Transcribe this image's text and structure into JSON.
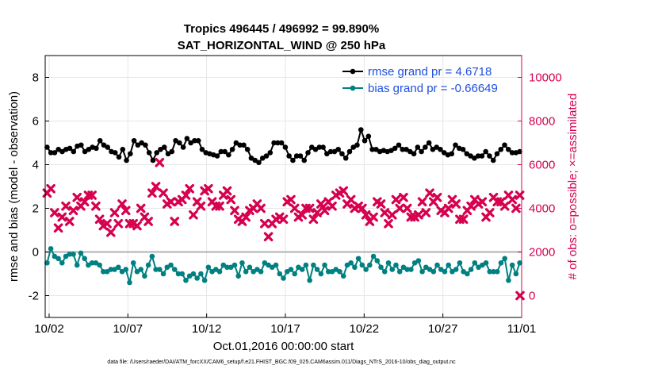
{
  "chart_data": {
    "type": "line",
    "title_line1": "Tropics 496445 / 496992 = 99.890%",
    "title_line2": "SAT_HORIZONTAL_WIND @ 250 hPa",
    "xlabel": "Oct.01,2016 00:00:00 start",
    "ylabel_left": "rmse and bias (model - observation)",
    "ylabel_right": "# of obs: o=possible; ×=assimilated",
    "footnote": "data file: /Users/raeder/DAI/ATM_forcXX/CAM6_setup/f.e21.FHIST_BGC.f09_025.CAM6assim.011/Diags_NTrS_2016-10/obs_diag_output.nc",
    "x_tick_labels": [
      "10/02",
      "10/07",
      "10/12",
      "10/17",
      "10/22",
      "10/27",
      "11/01"
    ],
    "x_tick_days": [
      1,
      6,
      11,
      16,
      21,
      26,
      31
    ],
    "xlim_days": [
      0.75,
      31
    ],
    "ylim_left": [
      -3,
      9
    ],
    "yticks_left": [
      -2,
      0,
      2,
      4,
      6,
      8
    ],
    "ylim_right": [
      -1000,
      11000
    ],
    "yticks_right": [
      0,
      2000,
      4000,
      6000,
      8000,
      10000
    ],
    "grid": true,
    "legend_position": "top-right",
    "colors": {
      "rmse": "#000000",
      "bias": "#008080",
      "obs": "#d6004f",
      "legend_text": "#1f4fe0",
      "zero_line": "#b0b0b0"
    },
    "series": [
      {
        "name": "rmse grand pr = 4.6718",
        "axis": "left",
        "values": [
          4.8,
          4.55,
          4.55,
          4.7,
          4.6,
          4.7,
          4.75,
          4.6,
          4.85,
          4.9,
          4.6,
          4.7,
          4.8,
          4.75,
          5.1,
          4.9,
          4.8,
          4.6,
          4.55,
          4.35,
          4.7,
          4.2,
          4.5,
          5.1,
          4.9,
          5.0,
          4.9,
          4.55,
          4.2,
          4.55,
          4.7,
          4.8,
          4.5,
          4.6,
          5.1,
          5.0,
          4.8,
          5.2,
          5.0,
          5.1,
          5.1,
          4.7,
          4.55,
          4.5,
          4.45,
          4.4,
          4.6,
          4.6,
          4.45,
          4.7,
          5.0,
          4.9,
          4.9,
          4.7,
          4.3,
          4.2,
          4.1,
          4.3,
          4.4,
          4.55,
          5.0,
          5.0,
          5.0,
          4.8,
          4.4,
          4.2,
          4.4,
          4.4,
          4.2,
          4.55,
          4.8,
          4.7,
          4.8,
          4.8,
          4.5,
          4.6,
          4.6,
          4.7,
          4.5,
          4.3,
          4.6,
          4.8,
          4.9,
          5.6,
          5.1,
          5.3,
          4.7,
          4.7,
          4.6,
          4.65,
          4.6,
          4.65,
          4.75,
          4.9,
          4.7,
          4.7,
          4.6,
          4.5,
          4.8,
          4.6,
          4.8,
          5.0,
          4.7,
          4.8,
          4.7,
          4.55,
          4.45,
          4.5,
          4.9,
          4.75,
          4.7,
          4.5,
          4.4,
          4.3,
          4.4,
          4.4,
          4.6,
          4.4,
          4.2,
          4.5,
          4.7,
          4.9,
          4.7,
          4.55,
          4.55,
          4.6
        ]
      },
      {
        "name": "bias grand pr = -0.66649",
        "axis": "left",
        "values": [
          -0.5,
          0.15,
          -0.2,
          -0.3,
          -0.5,
          -0.2,
          -0.1,
          -0.1,
          -0.6,
          -0.05,
          -0.3,
          -0.6,
          -0.5,
          -0.5,
          -0.6,
          -0.9,
          -0.9,
          -0.8,
          -0.8,
          -0.7,
          -0.9,
          -0.8,
          -1.4,
          -0.5,
          -0.9,
          -0.8,
          -1.1,
          -0.6,
          -0.2,
          -0.8,
          -0.8,
          -1.0,
          -0.7,
          -0.6,
          -0.8,
          -1.0,
          -1.0,
          -1.3,
          -1.1,
          -1.0,
          -1.2,
          -1.0,
          -1.3,
          -0.7,
          -0.9,
          -0.8,
          -0.9,
          -0.6,
          -0.7,
          -0.7,
          -0.6,
          -1.1,
          -0.5,
          -0.9,
          -0.7,
          -0.9,
          -0.8,
          -0.9,
          -0.5,
          -0.6,
          -0.7,
          -0.6,
          -1.0,
          -1.2,
          -0.9,
          -0.8,
          -1.0,
          -0.7,
          -0.8,
          -0.6,
          -1.3,
          -0.6,
          -0.8,
          -1.0,
          -0.6,
          -0.9,
          -0.9,
          -0.8,
          -0.9,
          -1.1,
          -0.6,
          -0.5,
          -0.7,
          -0.3,
          -0.6,
          -0.8,
          -0.6,
          -0.2,
          -0.4,
          -0.7,
          -0.9,
          -0.5,
          -0.8,
          -0.6,
          -0.9,
          -0.7,
          -0.8,
          -0.8,
          -0.5,
          -0.4,
          -0.9,
          -0.7,
          -0.8,
          -0.9,
          -0.6,
          -0.8,
          -0.9,
          -0.6,
          -0.9,
          -0.8,
          -0.5,
          -0.9,
          -1.0,
          -0.8,
          -0.5,
          -0.7,
          -0.6,
          -0.5,
          -0.9,
          -0.9,
          -0.9,
          -0.5,
          -0.3,
          -1.3,
          -0.6,
          -1.0,
          -0.5
        ]
      },
      {
        "name": "obs assimilated",
        "axis": "right",
        "values": [
          4700,
          4900,
          3800,
          3100,
          3600,
          4100,
          3400,
          3900,
          4500,
          4100,
          4300,
          4600,
          4600,
          4100,
          3500,
          3200,
          3300,
          2900,
          3800,
          3300,
          4200,
          3900,
          3300,
          3300,
          3200,
          4000,
          3600,
          3400,
          4700,
          5000,
          6100,
          4700,
          4200,
          4300,
          3400,
          4300,
          4400,
          4600,
          4900,
          3700,
          4300,
          4100,
          4800,
          4900,
          4300,
          4100,
          4100,
          4600,
          4800,
          4400,
          3900,
          3500,
          3400,
          3600,
          3900,
          4000,
          4200,
          4000,
          3300,
          2700,
          3300,
          3500,
          3600,
          3500,
          4300,
          4400,
          4000,
          3600,
          3700,
          4000,
          4000,
          3500,
          3800,
          4200,
          3900,
          4300,
          4100,
          4600,
          4700,
          4800,
          4200,
          4400,
          4000,
          4100,
          4000,
          3700,
          3400,
          3600,
          4300,
          4200,
          3800,
          3300,
          3700,
          4400,
          4000,
          4500,
          4000,
          3600,
          3600,
          3700,
          4300,
          3800,
          4700,
          4300,
          4500,
          3900,
          3800,
          4000,
          4400,
          4200,
          3500,
          3500,
          3900,
          4100,
          4400,
          4200,
          4300,
          3600,
          3800,
          4500,
          4300,
          4300,
          4100,
          4600,
          4400,
          4000,
          4600
        ]
      }
    ],
    "extra_points_right": [
      {
        "day": 31,
        "value": 0
      }
    ],
    "zero_line_left": 0
  }
}
